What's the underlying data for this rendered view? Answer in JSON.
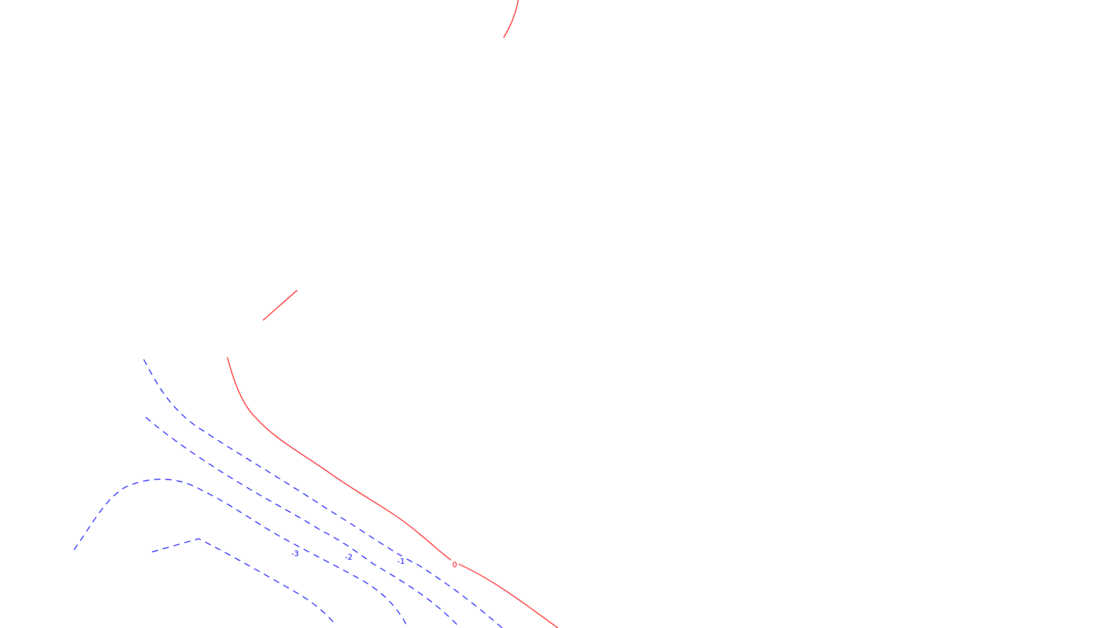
{
  "map": {
    "background": "#ffffff",
    "contours": [
      {
        "id": "zero-north",
        "level_label": "",
        "color": "#ff0000",
        "style": "solid",
        "labeled": false
      },
      {
        "id": "zero-segment",
        "level_label": "",
        "color": "#ff0000",
        "style": "solid",
        "labeled": false
      },
      {
        "id": "zero-main",
        "level_label": "0",
        "color": "#ff0000",
        "style": "solid",
        "labeled": true
      },
      {
        "id": "minus-1",
        "level_label": "-1",
        "color": "#0000ff",
        "style": "dashed",
        "labeled": true
      },
      {
        "id": "minus-2",
        "level_label": "-2",
        "color": "#0000ff",
        "style": "dashed",
        "labeled": true
      },
      {
        "id": "minus-3",
        "level_label": "-3",
        "color": "#0000ff",
        "style": "dashed",
        "labeled": true
      },
      {
        "id": "minus-4",
        "level_label": "",
        "color": "#0000ff",
        "style": "dashed",
        "labeled": false
      }
    ]
  }
}
